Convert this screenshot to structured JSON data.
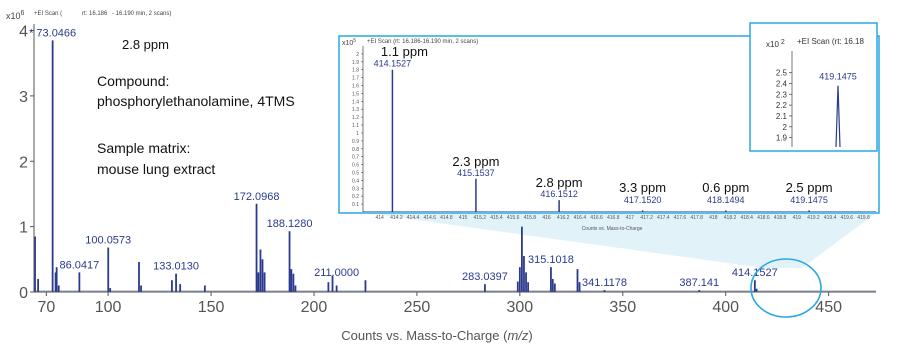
{
  "chart_data": {
    "type": "bar",
    "main": {
      "y_exponent_prefix": "x10",
      "y_exponent": "6",
      "scan_info_label": "+EI Scan (",
      "scan_rt": "rt: 16.186",
      "scan_rt_range": "- 16.190 min, 2 scans)",
      "xlabel_prefix": "Counts vs. Mass-to-Charge (",
      "xlabel_italic": "m/z",
      "xlabel_suffix": ")",
      "xlim": [
        64,
        473
      ],
      "ylim": [
        0,
        4.1
      ],
      "x_ticks": [
        70,
        100,
        150,
        200,
        250,
        300,
        350,
        400,
        450
      ],
      "y_ticks": [
        0,
        1,
        2,
        3,
        4
      ],
      "peaks": [
        {
          "x": 64.5,
          "y": 0.85
        },
        {
          "x": 66,
          "y": 0.2
        },
        {
          "x": 73.05,
          "y": 3.85
        },
        {
          "x": 74.5,
          "y": 0.3
        },
        {
          "x": 75,
          "y": 0.38
        },
        {
          "x": 76,
          "y": 0.1
        },
        {
          "x": 86.04,
          "y": 0.3
        },
        {
          "x": 100.06,
          "y": 0.68
        },
        {
          "x": 101,
          "y": 0.06
        },
        {
          "x": 115,
          "y": 0.46
        },
        {
          "x": 116,
          "y": 0.1
        },
        {
          "x": 131,
          "y": 0.18
        },
        {
          "x": 133.01,
          "y": 0.28
        },
        {
          "x": 135,
          "y": 0.12
        },
        {
          "x": 147,
          "y": 0.1
        },
        {
          "x": 172.1,
          "y": 1.35
        },
        {
          "x": 173,
          "y": 0.3
        },
        {
          "x": 174,
          "y": 0.65
        },
        {
          "x": 175,
          "y": 0.5
        },
        {
          "x": 176,
          "y": 0.3
        },
        {
          "x": 188.13,
          "y": 0.93
        },
        {
          "x": 189,
          "y": 0.35
        },
        {
          "x": 190,
          "y": 0.28
        },
        {
          "x": 191,
          "y": 0.1
        },
        {
          "x": 207,
          "y": 0.15
        },
        {
          "x": 209,
          "y": 0.25
        },
        {
          "x": 211,
          "y": 0.1
        },
        {
          "x": 225,
          "y": 0.18
        },
        {
          "x": 283.04,
          "y": 0.12
        },
        {
          "x": 299,
          "y": 0.16
        },
        {
          "x": 300,
          "y": 0.38
        },
        {
          "x": 301,
          "y": 1.0
        },
        {
          "x": 302,
          "y": 0.55
        },
        {
          "x": 303,
          "y": 0.3
        },
        {
          "x": 304,
          "y": 0.15
        },
        {
          "x": 315.1,
          "y": 0.38
        },
        {
          "x": 316,
          "y": 0.2
        },
        {
          "x": 317,
          "y": 0.13
        },
        {
          "x": 328,
          "y": 0.35
        },
        {
          "x": 329,
          "y": 0.15
        },
        {
          "x": 341.12,
          "y": 0.03
        },
        {
          "x": 387.14,
          "y": 0.03
        },
        {
          "x": 414.15,
          "y": 0.18
        },
        {
          "x": 415,
          "y": 0.05
        }
      ],
      "labels": [
        {
          "x": 73.05,
          "y": 3.85,
          "text": "* 73.0466"
        },
        {
          "x": 86.04,
          "y": 0.3,
          "text": "86.0417"
        },
        {
          "x": 100.06,
          "y": 0.68,
          "text": "100.0573"
        },
        {
          "x": 133.01,
          "y": 0.28,
          "text": "133.0130"
        },
        {
          "x": 172.1,
          "y": 1.35,
          "text": "172.0968"
        },
        {
          "x": 188.13,
          "y": 0.93,
          "text": "188.1280"
        },
        {
          "x": 211.0,
          "y": 0.18,
          "text": "211.0000"
        },
        {
          "x": 283.04,
          "y": 0.12,
          "text": "283.0397"
        },
        {
          "x": 315.1,
          "y": 0.38,
          "text": "315.1018"
        },
        {
          "x": 341.12,
          "y": 0.03,
          "text": "341.1178"
        },
        {
          "x": 387.14,
          "y": 0.03,
          "text": "387.141"
        },
        {
          "x": 414.15,
          "y": 0.18,
          "text": "414.1527"
        }
      ],
      "ppm_annotation": "2.8 ppm",
      "compound_heading": "Compound:",
      "compound_name": "phosphorylethanolamine, 4TMS",
      "matrix_heading": "Sample matrix:",
      "matrix_name": "mouse lung extract"
    },
    "inset": {
      "y_exponent_prefix": "x10",
      "y_exponent": "5",
      "scan_info": "+EI Scan (rt: 16.186-16.190 min, 2 scans)",
      "xlabel": "Counts vs. Mass-to-Charge",
      "xlim": [
        413.8,
        419.95
      ],
      "ylim": [
        0,
        2.1
      ],
      "y_ticks": [
        0.1,
        0.2,
        0.3,
        0.4,
        0.5,
        0.6,
        0.7,
        0.8,
        0.9,
        1,
        1.1,
        1.2,
        1.3,
        1.4,
        1.5,
        1.6,
        1.7,
        1.8,
        1.9,
        2
      ],
      "y_tick_labels": [
        "0.1",
        "0.2",
        "0.3",
        "0.4",
        "0.5",
        "0.6",
        "0.7",
        "0.8",
        "0.9",
        "1",
        "1.1",
        "1.2",
        "1.3",
        "1.4",
        "1.5",
        "1.6",
        "1.7",
        "1.8",
        "1.9",
        "2"
      ],
      "x_ticks": [
        414,
        414.2,
        414.4,
        414.6,
        414.8,
        415,
        415.2,
        415.4,
        415.6,
        415.8,
        416,
        416.2,
        416.4,
        416.6,
        416.8,
        417,
        417.2,
        417.4,
        417.6,
        417.8,
        418,
        418.2,
        418.4,
        418.6,
        418.8,
        419,
        419.2,
        419.4,
        419.6,
        419.8
      ],
      "x_tick_labels": [
        "414",
        "414.2",
        "414.4",
        "414.6",
        "414.8",
        "415",
        "415.2",
        "415.4",
        "415.6",
        "415.8",
        "416",
        "416.2",
        "416.4",
        "416.6",
        "416.8",
        "417",
        "417.2",
        "417.4",
        "417.6",
        "417.8",
        "418",
        "418.2",
        "418.4",
        "418.6",
        "418.8",
        "419",
        "419.2",
        "419.4",
        "419.6",
        "419.8"
      ],
      "peaks": [
        {
          "x": 414.1527,
          "y": 1.8,
          "label": "414.1527",
          "ppm": "1.1 ppm"
        },
        {
          "x": 415.1537,
          "y": 0.42,
          "label": "415.1537",
          "ppm": "2.3 ppm"
        },
        {
          "x": 416.1512,
          "y": 0.15,
          "label": "416.1512",
          "ppm": "2.8 ppm"
        },
        {
          "x": 417.152,
          "y": 0.02,
          "label": "417.1520",
          "ppm": "3.3 ppm"
        },
        {
          "x": 418.1494,
          "y": 0.02,
          "label": "418.1494",
          "ppm": "0.6 ppm"
        },
        {
          "x": 419.1475,
          "y": 0.02,
          "label": "419.1475",
          "ppm": "2.5 ppm"
        }
      ]
    },
    "zoom": {
      "y_exponent_prefix": "x10",
      "y_exponent": "2",
      "scan_info": "+EI Scan (rt: 16.18",
      "ylim": [
        1.85,
        2.7
      ],
      "y_ticks": [
        1.9,
        2,
        2.1,
        2.2,
        2.3,
        2.4,
        2.5
      ],
      "y_tick_labels": [
        "1.9",
        "2",
        "2.1",
        "2.2",
        "2.3",
        "2.4",
        "2.5"
      ],
      "peak": {
        "x": 419.1475,
        "y": 2.38,
        "label": "419.1475"
      }
    },
    "colors": {
      "spectrum": "#2b3a8f",
      "callout": "#29a9e0",
      "callout_fill": "#cbe8f4",
      "axis": "#555555",
      "text": "#111111"
    }
  }
}
